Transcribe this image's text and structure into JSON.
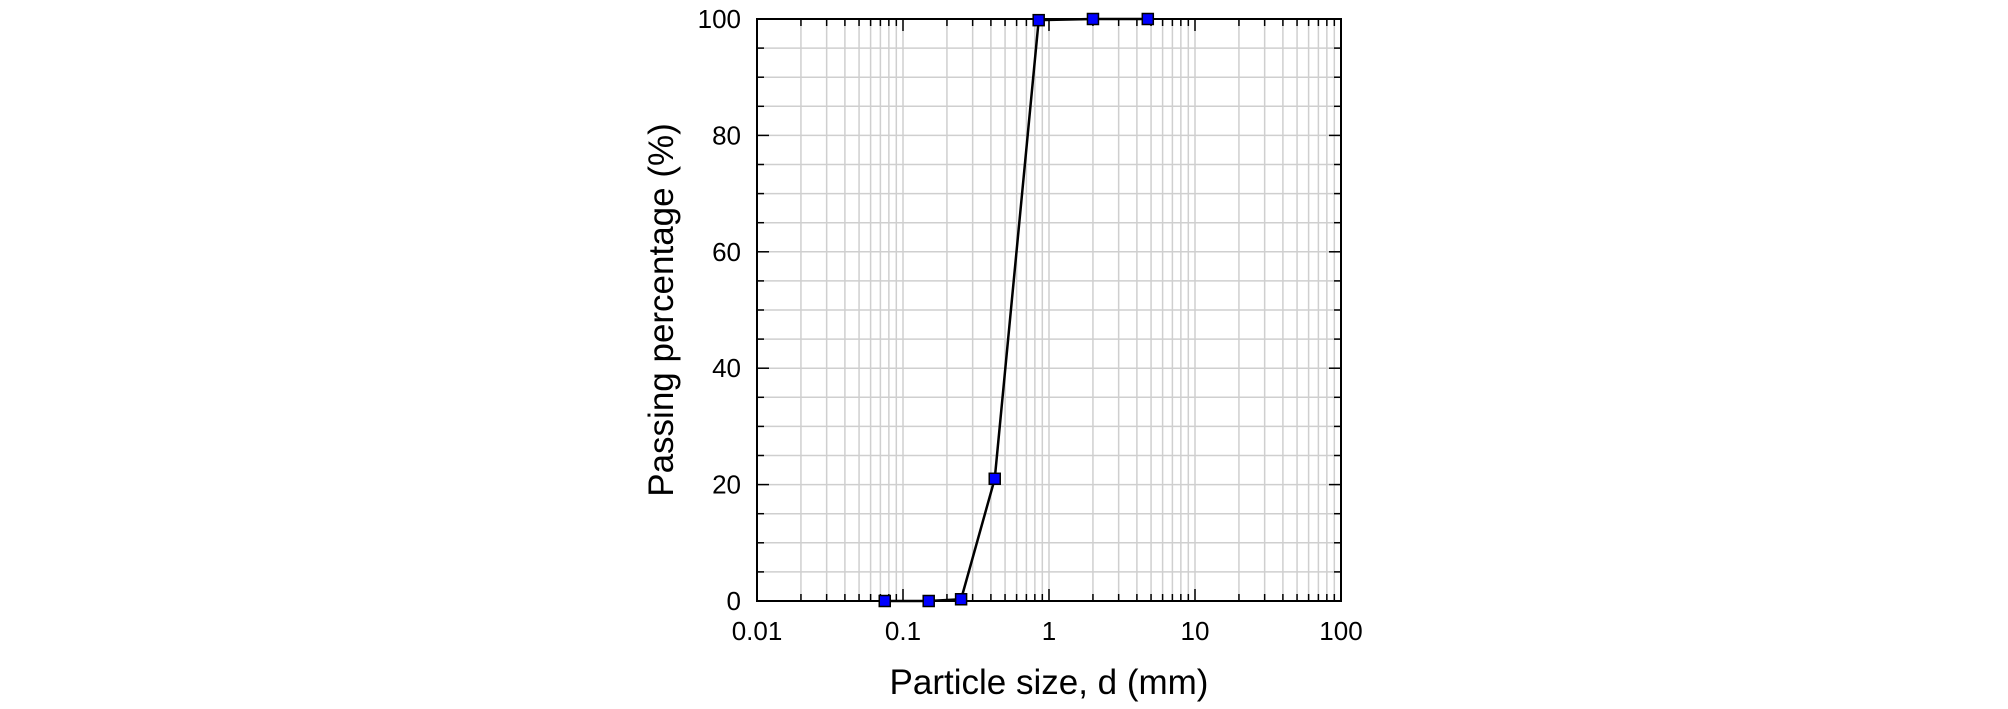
{
  "chart_data": {
    "type": "line",
    "title": "",
    "xlabel": "Particle size, d (mm)",
    "ylabel": "Passing percentage (%)",
    "x_scale": "log",
    "xlim": [
      0.01,
      100
    ],
    "ylim": [
      0,
      100
    ],
    "x_tick_labels": [
      "0.01",
      "0.1",
      "1",
      "10",
      "100"
    ],
    "y_tick_labels": [
      "0",
      "20",
      "40",
      "60",
      "80",
      "100"
    ],
    "grid": true,
    "legend": "none",
    "series": [
      {
        "x": [
          0.075,
          0.15,
          0.25,
          0.425,
          0.85,
          2.0,
          4.75
        ],
        "y": [
          0,
          0,
          0.3,
          21,
          99.8,
          100,
          100
        ],
        "line_color": "#000000",
        "marker": "square",
        "marker_color": "#0000ff"
      }
    ]
  }
}
